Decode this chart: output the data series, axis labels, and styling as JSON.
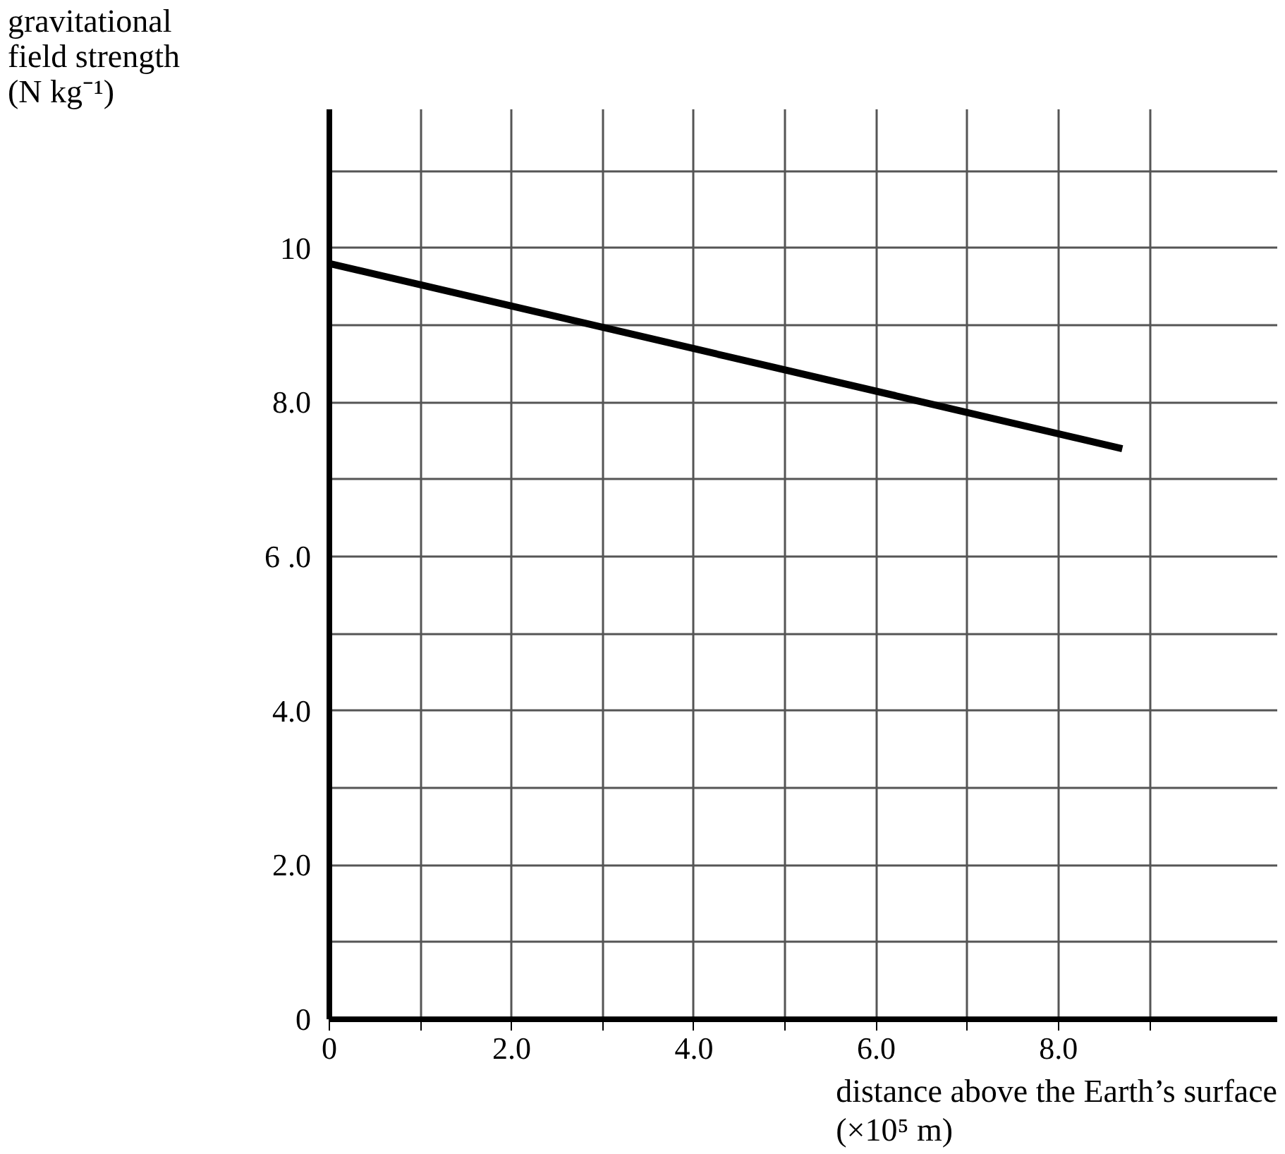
{
  "chart_data": {
    "type": "line",
    "xlabel": "distance above the Earth’s surface\n(×10⁵ m)",
    "ylabel": "gravitational\nfield strength\n(N kg⁻¹)",
    "series": [
      {
        "x": [
          0,
          8.7
        ],
        "values": [
          9.8,
          7.4
        ],
        "color": "#000000"
      }
    ],
    "xlim": [
      0,
      10.4
    ],
    "ylim": [
      0,
      11.8
    ],
    "xticks": [
      0,
      {
        "value": 1,
        "label": null
      },
      {
        "value": 2,
        "label": "2.0"
      },
      {
        "value": 3,
        "label": null
      },
      {
        "value": 4,
        "label": "4.0"
      },
      {
        "value": 5,
        "label": null
      },
      {
        "value": 6,
        "label": "6.0"
      },
      {
        "value": 7,
        "label": null
      },
      {
        "value": 8,
        "label": "8.0"
      },
      {
        "value": 9,
        "label": null
      }
    ],
    "yticks": [
      0,
      {
        "value": 1,
        "label": null
      },
      {
        "value": 2,
        "label": "2.0"
      },
      {
        "value": 3,
        "label": null
      },
      {
        "value": 4,
        "label": "4.0"
      },
      {
        "value": 5,
        "label": null
      },
      {
        "value": 6,
        "label": "6 .0"
      },
      {
        "value": 7,
        "label": null
      },
      {
        "value": 8,
        "label": "8.0"
      },
      {
        "value": 9,
        "label": null
      },
      10,
      {
        "value": 11,
        "label": null
      }
    ],
    "grid": true
  }
}
